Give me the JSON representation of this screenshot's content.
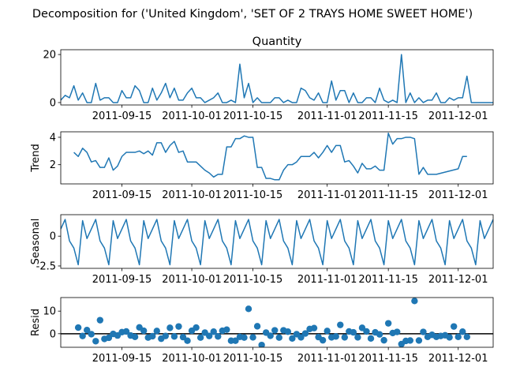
{
  "chart_data": {
    "type": "line",
    "suptitle": "Decomposition for ('United Kingdom', 'SET OF 2 TRAYS HOME SWEET HOME')",
    "colors": {
      "line": "#1f77b4",
      "marker": "#1f77b4",
      "zero_line": "#000000"
    },
    "x_range": [
      "2011-09-01",
      "2011-12-09"
    ],
    "x_ticks": [
      "2011-09-15",
      "2011-10-01",
      "2011-10-15",
      "2011-11-01",
      "2011-11-15",
      "2011-12-01"
    ],
    "panels": [
      {
        "key": "observed",
        "type": "line",
        "title": "Quantity",
        "ylabel": "",
        "ylim": [
          -1,
          22
        ],
        "yticks": [
          0,
          20
        ],
        "x": [
          "2011-09-01",
          "2011-09-02",
          "2011-09-03",
          "2011-09-04",
          "2011-09-05",
          "2011-09-06",
          "2011-09-07",
          "2011-09-08",
          "2011-09-09",
          "2011-09-10",
          "2011-09-11",
          "2011-09-12",
          "2011-09-13",
          "2011-09-14",
          "2011-09-15",
          "2011-09-16",
          "2011-09-17",
          "2011-09-18",
          "2011-09-19",
          "2011-09-20",
          "2011-09-21",
          "2011-09-22",
          "2011-09-23",
          "2011-09-24",
          "2011-09-25",
          "2011-09-26",
          "2011-09-27",
          "2011-09-28",
          "2011-09-29",
          "2011-09-30",
          "2011-10-01",
          "2011-10-02",
          "2011-10-03",
          "2011-10-04",
          "2011-10-05",
          "2011-10-06",
          "2011-10-07",
          "2011-10-08",
          "2011-10-09",
          "2011-10-10",
          "2011-10-11",
          "2011-10-12",
          "2011-10-13",
          "2011-10-14",
          "2011-10-15",
          "2011-10-16",
          "2011-10-17",
          "2011-10-18",
          "2011-10-19",
          "2011-10-20",
          "2011-10-21",
          "2011-10-22",
          "2011-10-23",
          "2011-10-24",
          "2011-10-25",
          "2011-10-26",
          "2011-10-27",
          "2011-10-28",
          "2011-10-29",
          "2011-10-30",
          "2011-10-31",
          "2011-11-01",
          "2011-11-02",
          "2011-11-03",
          "2011-11-04",
          "2011-11-05",
          "2011-11-06",
          "2011-11-07",
          "2011-11-08",
          "2011-11-09",
          "2011-11-10",
          "2011-11-11",
          "2011-11-12",
          "2011-11-13",
          "2011-11-14",
          "2011-11-15",
          "2011-11-16",
          "2011-11-17",
          "2011-11-18",
          "2011-11-19",
          "2011-11-20",
          "2011-11-21",
          "2011-11-22",
          "2011-11-23",
          "2011-11-24",
          "2011-11-25",
          "2011-11-26",
          "2011-11-27",
          "2011-11-28",
          "2011-11-29",
          "2011-11-30",
          "2011-12-01",
          "2011-12-02",
          "2011-12-03",
          "2011-12-04",
          "2011-12-05",
          "2011-12-06",
          "2011-12-07",
          "2011-12-08",
          "2011-12-09"
        ],
        "values": [
          1,
          3,
          2,
          7,
          1,
          4,
          0,
          0,
          8,
          1,
          2,
          2,
          0,
          0,
          5,
          2,
          2,
          7,
          5,
          0,
          0,
          6,
          1,
          4,
          8,
          2,
          6,
          1,
          1,
          4,
          6,
          2,
          2,
          0,
          1,
          2,
          4,
          0,
          0,
          1,
          0,
          16,
          2,
          8,
          0,
          2,
          0,
          0,
          0,
          2,
          2,
          0,
          1,
          0,
          0,
          6,
          5,
          2,
          1,
          4,
          0,
          0,
          9,
          1,
          5,
          5,
          0,
          4,
          0,
          0,
          2,
          2,
          0,
          6,
          1,
          0,
          1,
          0,
          20,
          0,
          4,
          0,
          2,
          0,
          1,
          1,
          4,
          0,
          0,
          2,
          1,
          2,
          2,
          11,
          0,
          0,
          0,
          0,
          0,
          0
        ]
      },
      {
        "key": "trend",
        "type": "line",
        "title": "",
        "ylabel": "Trend",
        "ylim": [
          0.6,
          4.4
        ],
        "yticks": [
          2,
          4
        ],
        "x": [
          "2011-09-04",
          "2011-09-05",
          "2011-09-06",
          "2011-09-07",
          "2011-09-08",
          "2011-09-09",
          "2011-09-10",
          "2011-09-11",
          "2011-09-12",
          "2011-09-13",
          "2011-09-14",
          "2011-09-15",
          "2011-09-16",
          "2011-09-17",
          "2011-09-18",
          "2011-09-19",
          "2011-09-20",
          "2011-09-21",
          "2011-09-22",
          "2011-09-23",
          "2011-09-24",
          "2011-09-25",
          "2011-09-26",
          "2011-09-27",
          "2011-09-28",
          "2011-09-29",
          "2011-09-30",
          "2011-10-01",
          "2011-10-02",
          "2011-10-03",
          "2011-10-04",
          "2011-10-05",
          "2011-10-06",
          "2011-10-07",
          "2011-10-08",
          "2011-10-09",
          "2011-10-10",
          "2011-10-11",
          "2011-10-12",
          "2011-10-13",
          "2011-10-14",
          "2011-10-15",
          "2011-10-16",
          "2011-10-17",
          "2011-10-18",
          "2011-10-19",
          "2011-10-20",
          "2011-10-21",
          "2011-10-22",
          "2011-10-23",
          "2011-10-24",
          "2011-10-25",
          "2011-10-26",
          "2011-10-27",
          "2011-10-28",
          "2011-10-29",
          "2011-10-30",
          "2011-10-31",
          "2011-11-01",
          "2011-11-02",
          "2011-11-03",
          "2011-11-04",
          "2011-11-05",
          "2011-11-06",
          "2011-11-07",
          "2011-11-08",
          "2011-11-09",
          "2011-11-10",
          "2011-11-11",
          "2011-11-12",
          "2011-11-13",
          "2011-11-14",
          "2011-11-15",
          "2011-11-16",
          "2011-11-17",
          "2011-11-18",
          "2011-11-19",
          "2011-11-20",
          "2011-11-21",
          "2011-11-22",
          "2011-11-23",
          "2011-11-24",
          "2011-11-25",
          "2011-11-26",
          "2011-12-01",
          "2011-12-02",
          "2011-12-03"
        ],
        "values": [
          2.9,
          2.6,
          3.2,
          2.9,
          2.2,
          2.3,
          1.8,
          1.8,
          2.5,
          1.6,
          1.9,
          2.6,
          2.9,
          2.9,
          2.9,
          3.0,
          2.8,
          3.0,
          2.7,
          3.6,
          3.6,
          2.9,
          3.4,
          3.7,
          2.9,
          3.0,
          2.2,
          2.2,
          2.2,
          1.9,
          1.6,
          1.4,
          1.1,
          1.3,
          1.3,
          3.3,
          3.3,
          3.9,
          3.9,
          4.1,
          4.0,
          4.0,
          1.8,
          1.8,
          1.0,
          1.0,
          0.9,
          0.9,
          1.6,
          2.0,
          2.0,
          2.2,
          2.6,
          2.6,
          2.6,
          2.9,
          2.5,
          2.9,
          3.4,
          2.9,
          3.4,
          3.4,
          2.2,
          2.3,
          1.9,
          1.4,
          2.1,
          1.7,
          1.7,
          1.9,
          1.6,
          1.6,
          4.3,
          3.5,
          3.9,
          3.9,
          4.0,
          4.0,
          3.9,
          1.3,
          1.8,
          1.3,
          1.3,
          1.3,
          1.7,
          2.6,
          2.6
        ]
      },
      {
        "key": "seasonal",
        "type": "line",
        "title": "",
        "ylabel": "Seasonal",
        "ylim": [
          -2.7,
          1.8
        ],
        "yticks": [
          0.0,
          -2.5
        ],
        "period": 7,
        "pattern": [
          0.6,
          1.4,
          -0.4,
          -1.0,
          -2.4,
          1.3,
          -0.2
        ],
        "x_start": "2011-09-01",
        "count": 100
      },
      {
        "key": "resid",
        "type": "scatter",
        "title": "",
        "ylabel": "Resid",
        "ylim": [
          -6,
          16
        ],
        "yticks": [
          0,
          10
        ],
        "x": [
          "2011-09-05",
          "2011-09-06",
          "2011-09-07",
          "2011-09-08",
          "2011-09-09",
          "2011-09-10",
          "2011-09-11",
          "2011-09-12",
          "2011-09-13",
          "2011-09-14",
          "2011-09-15",
          "2011-09-16",
          "2011-09-17",
          "2011-09-18",
          "2011-09-19",
          "2011-09-20",
          "2011-09-21",
          "2011-09-22",
          "2011-09-23",
          "2011-09-24",
          "2011-09-25",
          "2011-09-26",
          "2011-09-27",
          "2011-09-28",
          "2011-09-29",
          "2011-09-30",
          "2011-10-01",
          "2011-10-02",
          "2011-10-03",
          "2011-10-04",
          "2011-10-05",
          "2011-10-06",
          "2011-10-07",
          "2011-10-08",
          "2011-10-09",
          "2011-10-10",
          "2011-10-11",
          "2011-10-12",
          "2011-10-13",
          "2011-10-14",
          "2011-10-15",
          "2011-10-16",
          "2011-10-17",
          "2011-10-18",
          "2011-10-19",
          "2011-10-20",
          "2011-10-21",
          "2011-10-22",
          "2011-10-23",
          "2011-10-24",
          "2011-10-25",
          "2011-10-26",
          "2011-10-27",
          "2011-10-28",
          "2011-10-29",
          "2011-10-30",
          "2011-10-31",
          "2011-11-01",
          "2011-11-02",
          "2011-11-03",
          "2011-11-04",
          "2011-11-05",
          "2011-11-06",
          "2011-11-07",
          "2011-11-08",
          "2011-11-09",
          "2011-11-10",
          "2011-11-11",
          "2011-11-12",
          "2011-11-13",
          "2011-11-14",
          "2011-11-15",
          "2011-11-16",
          "2011-11-17",
          "2011-11-18",
          "2011-11-19",
          "2011-11-20",
          "2011-11-21",
          "2011-11-22",
          "2011-11-23",
          "2011-11-24",
          "2011-11-25",
          "2011-11-26",
          "2011-11-27",
          "2011-11-28",
          "2011-11-29",
          "2011-11-30",
          "2011-12-01",
          "2011-12-02",
          "2011-12-03"
        ],
        "values": [
          2.7,
          -1.0,
          1.6,
          -0.2,
          -3.3,
          6.0,
          -2.3,
          -1.8,
          -0.1,
          -0.8,
          0.7,
          1.0,
          -0.8,
          -1.4,
          2.8,
          1.3,
          -1.7,
          -1.1,
          1.2,
          -2.2,
          -1.0,
          2.6,
          -1.2,
          3.2,
          -1.5,
          -3.1,
          1.3,
          2.7,
          -1.7,
          0.5,
          -1.0,
          0.9,
          -1.2,
          1.3,
          1.8,
          -3.1,
          -3.1,
          -1.4,
          -1.7,
          11.0,
          -1.6,
          3.3,
          -5.0,
          0.5,
          -0.9,
          1.5,
          -1.7,
          1.5,
          0.9,
          -2.1,
          -0.2,
          -1.6,
          0.1,
          2.1,
          2.5,
          -1.5,
          -2.9,
          1.2,
          -1.6,
          -1.2,
          3.9,
          -1.6,
          1.0,
          0.6,
          -1.6,
          2.6,
          1.0,
          -2.1,
          0.6,
          -0.3,
          -2.9,
          4.6,
          0.3,
          0.8,
          -4.6,
          -3.2,
          -3.0,
          14.5,
          -3.0,
          0.8,
          -1.4,
          -0.5,
          -1.4,
          -1.0,
          -0.7,
          -1.6,
          3.2,
          -1.4,
          0.9,
          -1.4
        ]
      }
    ]
  }
}
